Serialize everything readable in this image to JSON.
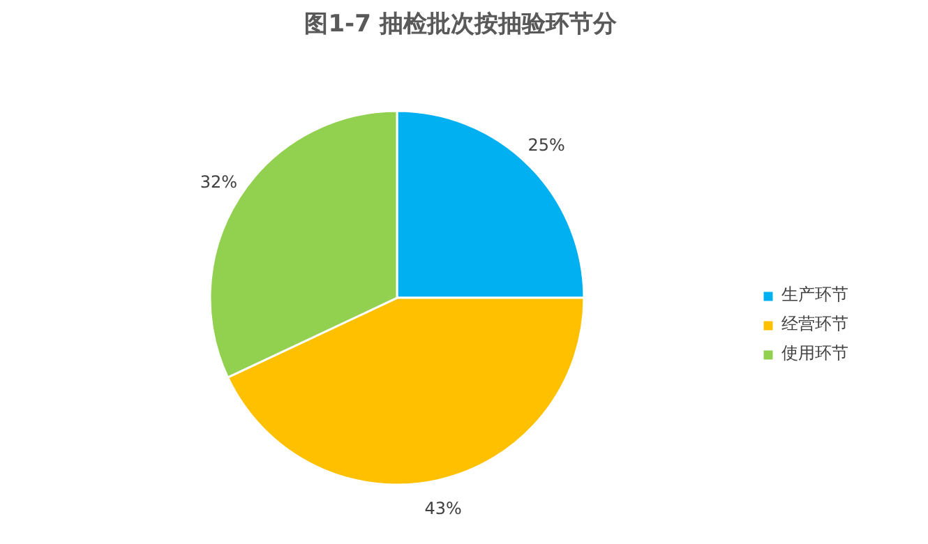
{
  "chart_data": {
    "type": "pie",
    "title": "图1-7  抽检批次按抽验环节分",
    "categories": [
      "生产环节",
      "经营环节",
      "使用环节"
    ],
    "values": [
      25,
      43,
      32
    ],
    "value_labels": [
      "25%",
      "43%",
      "32%"
    ],
    "colors": [
      "#00b0f0",
      "#ffc000",
      "#92d050"
    ],
    "legend": "right"
  }
}
